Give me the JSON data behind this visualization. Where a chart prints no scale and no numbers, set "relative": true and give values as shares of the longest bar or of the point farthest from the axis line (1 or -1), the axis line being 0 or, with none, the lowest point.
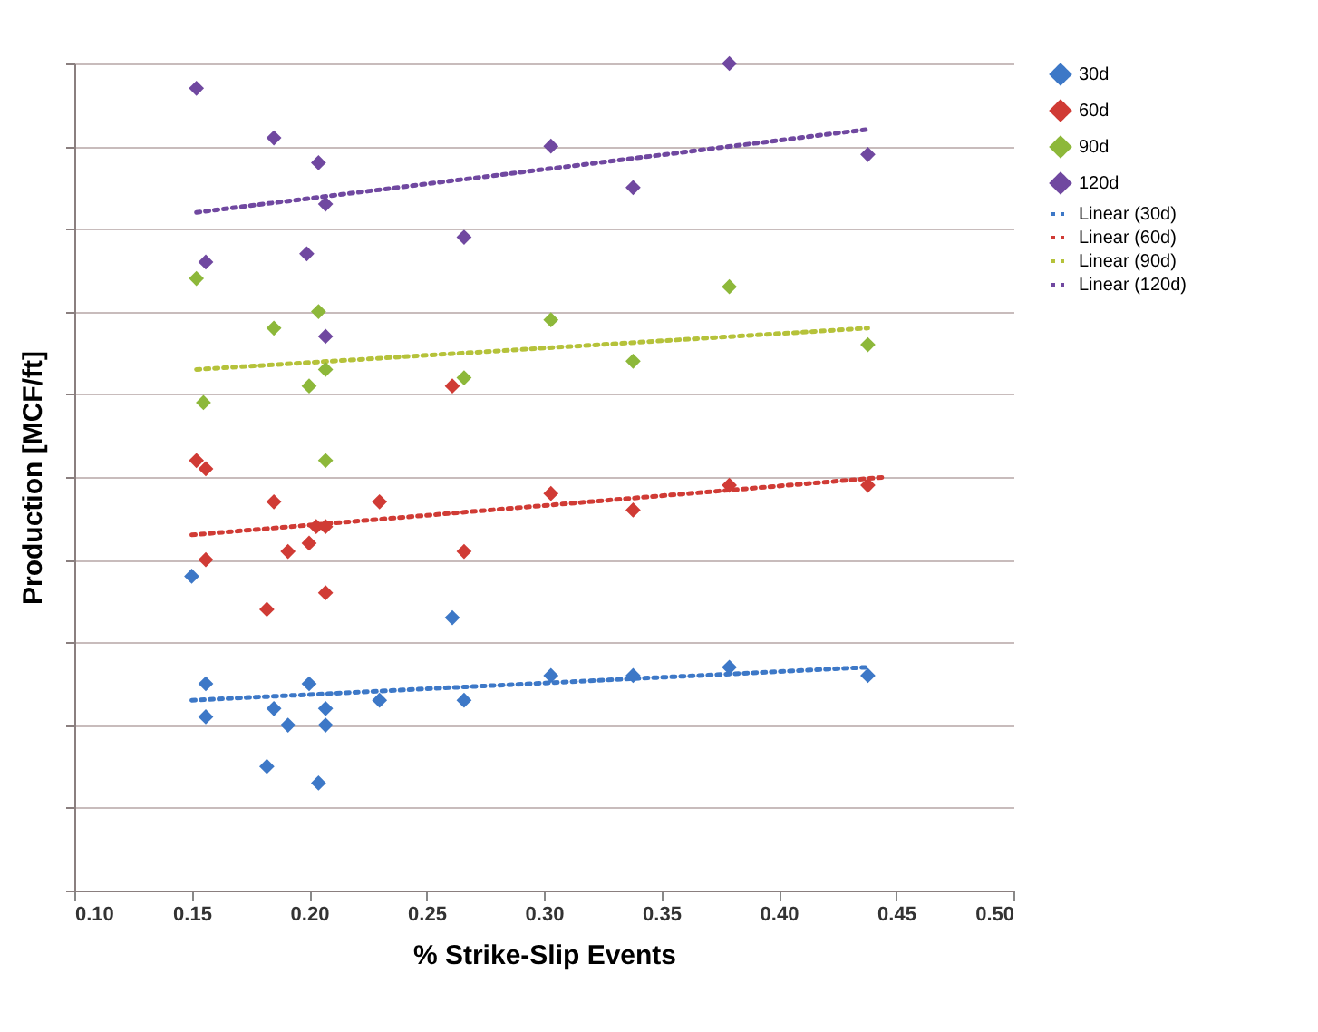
{
  "chart_data": {
    "type": "scatter",
    "xlabel": "% Strike-Slip Events",
    "ylabel": "Production [MCF/ft]",
    "relative": true,
    "grid": "y",
    "legend": "right",
    "xlim": [
      0.1,
      0.5
    ],
    "xticks": [
      {
        "value": 0.1,
        "label": "0.10"
      },
      {
        "value": 0.15,
        "label": "0.15"
      },
      {
        "value": 0.2,
        "label": "0.20"
      },
      {
        "value": 0.25,
        "label": "0.25"
      },
      {
        "value": 0.3,
        "label": "0.30"
      },
      {
        "value": 0.35,
        "label": "0.35"
      },
      {
        "value": 0.4,
        "label": "0.40"
      },
      {
        "value": 0.45,
        "label": "0.45"
      },
      {
        "value": 0.5,
        "label": "0.50"
      }
    ],
    "series": [
      {
        "name": "30d",
        "marker": "diamond",
        "color": "#3d78c7",
        "x": [
          0.15,
          0.156,
          0.156,
          0.182,
          0.185,
          0.191,
          0.2,
          0.204,
          0.207,
          0.207,
          0.23,
          0.261,
          0.266,
          0.303,
          0.338,
          0.379,
          0.438
        ],
        "values": [
          0.38,
          0.25,
          0.21,
          0.15,
          0.22,
          0.2,
          0.25,
          0.13,
          0.22,
          0.2,
          0.23,
          0.33,
          0.23,
          0.26,
          0.26,
          0.27,
          0.26
        ]
      },
      {
        "name": "60d",
        "marker": "diamond",
        "color": "#d03b35",
        "x": [
          0.152,
          0.156,
          0.156,
          0.182,
          0.185,
          0.191,
          0.2,
          0.203,
          0.207,
          0.207,
          0.23,
          0.261,
          0.266,
          0.303,
          0.338,
          0.379,
          0.438
        ],
        "values": [
          0.52,
          0.51,
          0.4,
          0.34,
          0.47,
          0.41,
          0.42,
          0.44,
          0.44,
          0.36,
          0.47,
          0.61,
          0.41,
          0.48,
          0.46,
          0.49,
          0.49
        ]
      },
      {
        "name": "90d",
        "marker": "diamond",
        "color": "#8db83a",
        "x": [
          0.152,
          0.155,
          0.185,
          0.2,
          0.204,
          0.207,
          0.207,
          0.266,
          0.303,
          0.338,
          0.379,
          0.438
        ],
        "values": [
          0.74,
          0.59,
          0.68,
          0.61,
          0.7,
          0.63,
          0.52,
          0.62,
          0.69,
          0.64,
          0.73,
          0.66
        ]
      },
      {
        "name": "120d",
        "marker": "diamond",
        "color": "#7048a0",
        "x": [
          0.152,
          0.156,
          0.185,
          0.199,
          0.204,
          0.207,
          0.207,
          0.266,
          0.303,
          0.338,
          0.379,
          0.438
        ],
        "values": [
          0.97,
          0.76,
          0.91,
          0.77,
          0.88,
          0.83,
          0.67,
          0.79,
          0.9,
          0.85,
          1.0,
          0.89
        ]
      },
      {
        "name": "Linear (30d)",
        "type": "line",
        "line_style": "dotted",
        "marker": "none",
        "color": "#3d78c7",
        "x": [
          0.15,
          0.438
        ],
        "values": [
          0.23,
          0.27
        ]
      },
      {
        "name": "Linear (60d)",
        "type": "line",
        "line_style": "dotted",
        "marker": "none",
        "color": "#d03b35",
        "x": [
          0.15,
          0.446
        ],
        "values": [
          0.43,
          0.5
        ]
      },
      {
        "name": "Linear (90d)",
        "type": "line",
        "line_style": "dotted",
        "marker": "none",
        "color": "#b5c23a",
        "x": [
          0.152,
          0.438
        ],
        "values": [
          0.63,
          0.68
        ]
      },
      {
        "name": "Linear (120d)",
        "type": "line",
        "line_style": "dotted",
        "marker": "none",
        "color": "#7048a0",
        "x": [
          0.152,
          0.437
        ],
        "values": [
          0.82,
          0.92
        ]
      }
    ]
  }
}
